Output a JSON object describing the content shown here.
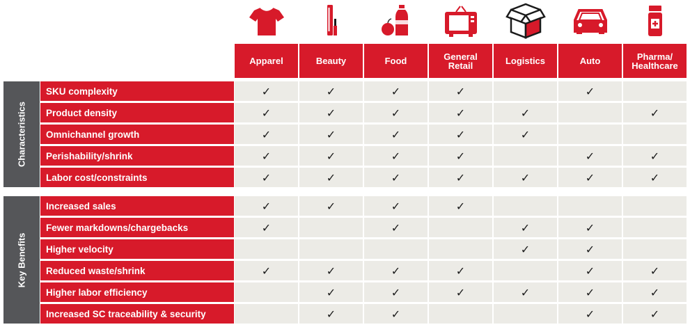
{
  "colors": {
    "accent": "#d71a2a",
    "section_bg": "#555659",
    "cell_bg": "#ecebe6"
  },
  "check_mark": "✓",
  "columns": [
    {
      "label": "Apparel",
      "icon": "tshirt-icon"
    },
    {
      "label": "Beauty",
      "icon": "mascara-icon"
    },
    {
      "label": "Food",
      "icon": "food-icon"
    },
    {
      "label": "General\nRetail",
      "icon": "retail-tv-icon"
    },
    {
      "label": "Logistics",
      "icon": "box-icon"
    },
    {
      "label": "Auto",
      "icon": "car-icon"
    },
    {
      "label": "Pharma/\nHealthcare",
      "icon": "pill-bottle-icon"
    }
  ],
  "sections": [
    {
      "label": "Characteristics",
      "rows": [
        {
          "label": "SKU complexity",
          "checks": [
            true,
            true,
            true,
            true,
            false,
            true,
            false
          ]
        },
        {
          "label": "Product density",
          "checks": [
            true,
            true,
            true,
            true,
            true,
            false,
            true
          ]
        },
        {
          "label": "Omnichannel growth",
          "checks": [
            true,
            true,
            true,
            true,
            true,
            false,
            false
          ]
        },
        {
          "label": "Perishability/shrink",
          "checks": [
            true,
            true,
            true,
            true,
            false,
            true,
            true
          ]
        },
        {
          "label": "Labor cost/constraints",
          "checks": [
            true,
            true,
            true,
            true,
            true,
            true,
            true
          ]
        }
      ]
    },
    {
      "label": "Key Benefits",
      "rows": [
        {
          "label": "Increased sales",
          "checks": [
            true,
            true,
            true,
            true,
            false,
            false,
            false
          ]
        },
        {
          "label": "Fewer markdowns/chargebacks",
          "checks": [
            true,
            false,
            true,
            false,
            true,
            true,
            false
          ]
        },
        {
          "label": "Higher velocity",
          "checks": [
            false,
            false,
            false,
            false,
            true,
            true,
            false
          ]
        },
        {
          "label": "Reduced waste/shrink",
          "checks": [
            true,
            true,
            true,
            true,
            false,
            true,
            true
          ]
        },
        {
          "label": "Higher labor efficiency",
          "checks": [
            false,
            true,
            true,
            true,
            true,
            true,
            true
          ]
        },
        {
          "label": "Increased SC traceability & security",
          "checks": [
            false,
            true,
            true,
            false,
            false,
            true,
            true
          ]
        }
      ]
    }
  ]
}
